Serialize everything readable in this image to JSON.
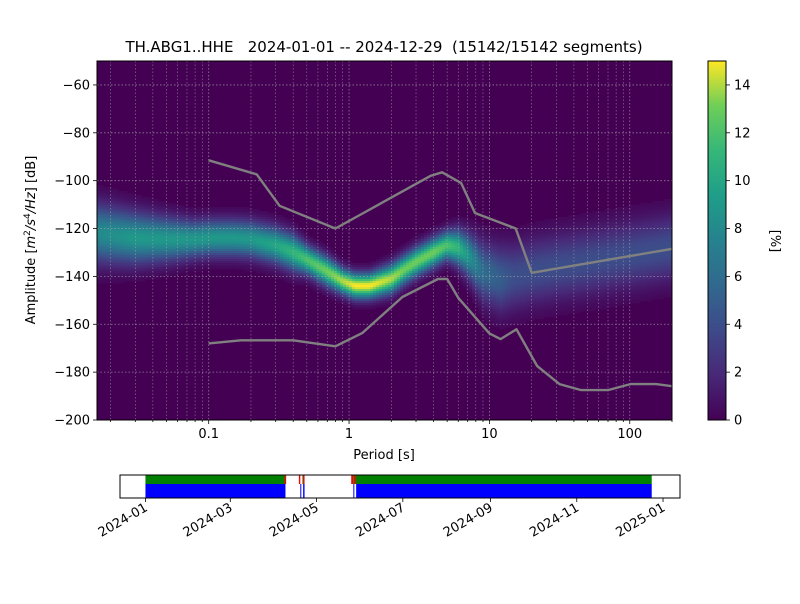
{
  "chart_data": [
    {
      "type": "heatmap",
      "title": "TH.ABG1..HHE   2024-01-01 -- 2024-12-29  (15142/15142 segments)",
      "xlabel": "Period [s]",
      "ylabel_parts": [
        "Amplitude [",
        "m",
        "2",
        "/s",
        "4",
        "/Hz",
        "] [dB]"
      ],
      "x_scale": "log",
      "xlim": [
        0.016,
        200
      ],
      "ylim": [
        -200,
        -50
      ],
      "x_ticks": [
        0.1,
        1,
        10,
        100
      ],
      "x_tick_labels": [
        "0.1",
        "1",
        "10",
        "100"
      ],
      "y_ticks": [
        -200,
        -180,
        -160,
        -140,
        -120,
        -100,
        -80,
        -60
      ],
      "y_tick_labels": [
        "−200",
        "−180",
        "−160",
        "−140",
        "−120",
        "−100",
        "−80",
        "−60"
      ],
      "grid": true,
      "colorbar": {
        "label": "[%]",
        "colormap": "viridis",
        "range": [
          0,
          15
        ],
        "ticks": [
          0,
          2,
          4,
          6,
          8,
          10,
          12,
          14
        ],
        "tick_labels": [
          "0",
          "2",
          "4",
          "6",
          "8",
          "10",
          "12",
          "14"
        ]
      },
      "density_ridge": {
        "period": [
          0.016,
          0.03,
          0.05,
          0.08,
          0.1,
          0.15,
          0.2,
          0.3,
          0.4,
          0.5,
          0.7,
          0.9,
          1.1,
          1.4,
          2,
          2.5,
          3,
          4,
          5,
          6,
          7,
          9,
          12,
          15,
          20,
          30,
          50,
          100,
          200
        ],
        "db": [
          -122,
          -124,
          -124.5,
          -124.5,
          -124,
          -124,
          -124.5,
          -127,
          -130,
          -133,
          -138,
          -142,
          -144,
          -144,
          -141,
          -137,
          -134,
          -130,
          -127,
          -128,
          -131,
          -138,
          -141,
          -140,
          -138,
          -136,
          -134,
          -131,
          -128
        ],
        "peak_percent": [
          8,
          9,
          9,
          9,
          9,
          9,
          9,
          10,
          11,
          12,
          13,
          14,
          15,
          15,
          14,
          13,
          13,
          13,
          12,
          11,
          9,
          6,
          5,
          4,
          4,
          4,
          4,
          4,
          4
        ],
        "spread_db": [
          8,
          7,
          6,
          5,
          5,
          5,
          5,
          5,
          5,
          4,
          4,
          3.5,
          3.5,
          3.5,
          4,
          4,
          4,
          4,
          4,
          5,
          6,
          8,
          9,
          9,
          9,
          9,
          9,
          9,
          9
        ]
      },
      "noise_models": [
        {
          "name": "high",
          "color": "#808080",
          "period": [
            0.1,
            0.22,
            0.32,
            0.8,
            3.8,
            4.6,
            6.3,
            7.9,
            15.4,
            20,
            354.8
          ],
          "db": [
            -91.5,
            -97.4,
            -110.5,
            -120,
            -98,
            -96.5,
            -101,
            -113.5,
            -120,
            -138.5,
            -126
          ]
        },
        {
          "name": "low",
          "color": "#808080",
          "period": [
            0.1,
            0.17,
            0.4,
            0.8,
            1.24,
            2.4,
            4.3,
            5,
            6,
            10,
            12,
            15.6,
            21.9,
            31.6,
            45,
            70,
            101,
            154,
            328
          ],
          "db": [
            -168,
            -166.7,
            -166.7,
            -169.2,
            -163.7,
            -148.6,
            -141.1,
            -141.1,
            -149,
            -163.8,
            -166.2,
            -162.1,
            -177.5,
            -185,
            -187.5,
            -187.5,
            -185,
            -185,
            -187.5
          ]
        }
      ]
    },
    {
      "type": "timeline",
      "x_tick_labels": [
        "2024-01",
        "2024-03",
        "2024-05",
        "2024-07",
        "2024-09",
        "2024-11",
        "2025-01"
      ],
      "x_tick_days": [
        0,
        60,
        121,
        182,
        244,
        305,
        366
      ],
      "xlim_days": [
        -18,
        378
      ],
      "colors": {
        "green": "#008000",
        "blue": "#0000ff",
        "red": "#ff0000"
      },
      "green_segments": [
        [
          0,
          99
        ],
        [
          111,
          111.5
        ],
        [
          147,
          358
        ]
      ],
      "blue_segments": [
        [
          0,
          99
        ],
        [
          109.5,
          110
        ],
        [
          111.5,
          112.5
        ],
        [
          147,
          147.5
        ],
        [
          149,
          358
        ]
      ],
      "red_segments": [
        [
          98.5,
          99.5
        ],
        [
          108.5,
          109.5
        ],
        [
          111.5,
          112.5
        ],
        [
          145.5,
          147
        ],
        [
          148,
          149
        ]
      ]
    }
  ]
}
